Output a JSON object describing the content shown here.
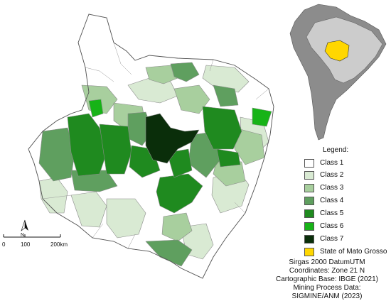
{
  "legend": {
    "title": "Legend:",
    "items": [
      {
        "label": "Class 1",
        "color": "#ffffff"
      },
      {
        "label": "Class 2",
        "color": "#d9ead3"
      },
      {
        "label": "Class 3",
        "color": "#a8cf9e"
      },
      {
        "label": "Class 4",
        "color": "#5f9f5f"
      },
      {
        "label": "Class 5",
        "color": "#1f8a1f"
      },
      {
        "label": "Class 6",
        "color": "#17b317"
      },
      {
        "label": "Class 7",
        "color": "#0a2e0a"
      },
      {
        "label": "State of Mato Grosso",
        "color": "#ffd700"
      }
    ]
  },
  "scale": {
    "ticks": [
      "0",
      "100",
      "200km"
    ],
    "north_label": "N"
  },
  "credits": {
    "line1": "Sirgas 2000 DatumUTM",
    "line2": "Coordinates: Zone 21 N",
    "line3": "Cartographic Base: IBGE (2021)",
    "line4": "Mining Process Data:",
    "line5": "SIGMINE/ANM (2023)"
  },
  "inset": {
    "country_color": "#cccccc",
    "continent_color": "#8c8c8c",
    "state_color": "#ffd700"
  }
}
